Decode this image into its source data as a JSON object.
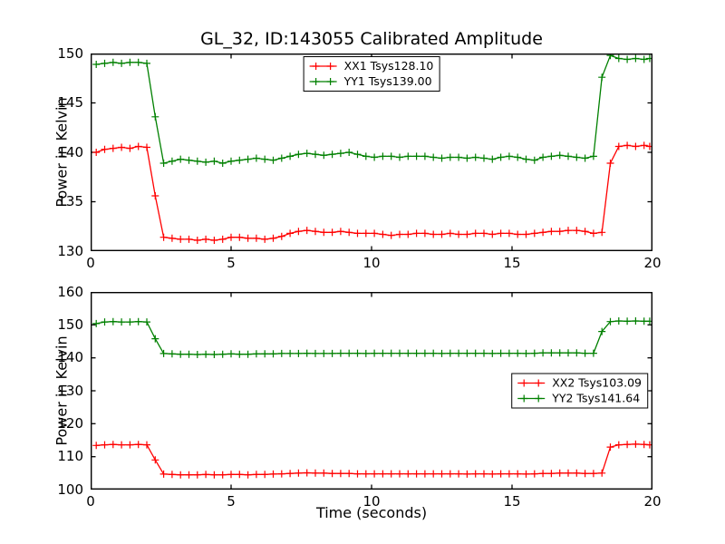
{
  "figure": {
    "title": "GL_32, ID:143055 Calibrated Amplitude",
    "background_color": "#ffffff",
    "frame_color": "#000000"
  },
  "chart_data": [
    {
      "type": "line",
      "subplot": "top",
      "ylabel": "Power in Kelvin",
      "xlabel": "",
      "xlim": [
        0,
        20
      ],
      "ylim": [
        130,
        150
      ],
      "xticks": [
        0,
        5,
        10,
        15,
        20
      ],
      "yticks": [
        130,
        135,
        140,
        145,
        150
      ],
      "grid": false,
      "legend_position": "upper center",
      "x": [
        0.2,
        0.5,
        0.8,
        1.1,
        1.4,
        1.7,
        2.0,
        2.3,
        2.6,
        2.9,
        3.2,
        3.5,
        3.8,
        4.1,
        4.4,
        4.7,
        5.0,
        5.3,
        5.6,
        5.9,
        6.2,
        6.5,
        6.8,
        7.1,
        7.4,
        7.7,
        8.0,
        8.3,
        8.6,
        8.9,
        9.2,
        9.5,
        9.8,
        10.1,
        10.4,
        10.7,
        11.0,
        11.3,
        11.6,
        11.9,
        12.2,
        12.5,
        12.8,
        13.1,
        13.4,
        13.7,
        14.0,
        14.3,
        14.6,
        14.9,
        15.2,
        15.5,
        15.8,
        16.1,
        16.4,
        16.7,
        17.0,
        17.3,
        17.6,
        17.9,
        18.2,
        18.5,
        18.8,
        19.1,
        19.4,
        19.7,
        19.9
      ],
      "series": [
        {
          "name": "XX1 Tsys128.10",
          "tsys": 128.1,
          "color": "#ff0000",
          "marker": "+",
          "values": [
            140.0,
            140.3,
            140.4,
            140.5,
            140.4,
            140.6,
            140.5,
            135.6,
            131.4,
            131.3,
            131.2,
            131.2,
            131.1,
            131.2,
            131.1,
            131.2,
            131.4,
            131.4,
            131.3,
            131.3,
            131.2,
            131.3,
            131.5,
            131.8,
            132.0,
            132.1,
            132.0,
            131.9,
            131.9,
            132.0,
            131.9,
            131.8,
            131.8,
            131.8,
            131.7,
            131.6,
            131.7,
            131.7,
            131.8,
            131.8,
            131.7,
            131.7,
            131.8,
            131.7,
            131.7,
            131.8,
            131.8,
            131.7,
            131.8,
            131.8,
            131.7,
            131.7,
            131.8,
            131.9,
            132.0,
            132.0,
            132.1,
            132.1,
            132.0,
            131.8,
            131.9,
            138.9,
            140.6,
            140.7,
            140.6,
            140.7,
            140.6
          ]
        },
        {
          "name": "YY1 Tsys139.00",
          "tsys": 139.0,
          "color": "#008000",
          "marker": "+",
          "values": [
            148.9,
            149.0,
            149.1,
            149.0,
            149.1,
            149.1,
            149.0,
            143.6,
            138.9,
            139.1,
            139.3,
            139.2,
            139.1,
            139.0,
            139.1,
            138.9,
            139.1,
            139.2,
            139.3,
            139.4,
            139.3,
            139.2,
            139.4,
            139.6,
            139.8,
            139.9,
            139.8,
            139.7,
            139.8,
            139.9,
            140.0,
            139.8,
            139.6,
            139.5,
            139.6,
            139.6,
            139.5,
            139.6,
            139.6,
            139.6,
            139.5,
            139.4,
            139.5,
            139.5,
            139.4,
            139.5,
            139.4,
            139.3,
            139.5,
            139.6,
            139.5,
            139.3,
            139.2,
            139.5,
            139.6,
            139.7,
            139.6,
            139.5,
            139.4,
            139.6,
            147.6,
            149.8,
            149.5,
            149.4,
            149.5,
            149.4,
            149.5
          ]
        }
      ]
    },
    {
      "type": "line",
      "subplot": "bottom",
      "ylabel": "Power in Kelvin",
      "xlabel": "Time (seconds)",
      "xlim": [
        0,
        20
      ],
      "ylim": [
        100,
        160
      ],
      "xticks": [
        0,
        5,
        10,
        15,
        20
      ],
      "yticks": [
        100,
        110,
        120,
        130,
        140,
        150,
        160
      ],
      "grid": false,
      "legend_position": "center right",
      "x": [
        0.2,
        0.5,
        0.8,
        1.1,
        1.4,
        1.7,
        2.0,
        2.3,
        2.6,
        2.9,
        3.2,
        3.5,
        3.8,
        4.1,
        4.4,
        4.7,
        5.0,
        5.3,
        5.6,
        5.9,
        6.2,
        6.5,
        6.8,
        7.1,
        7.4,
        7.7,
        8.0,
        8.3,
        8.6,
        8.9,
        9.2,
        9.5,
        9.8,
        10.1,
        10.4,
        10.7,
        11.0,
        11.3,
        11.6,
        11.9,
        12.2,
        12.5,
        12.8,
        13.1,
        13.4,
        13.7,
        14.0,
        14.3,
        14.6,
        14.9,
        15.2,
        15.5,
        15.8,
        16.1,
        16.4,
        16.7,
        17.0,
        17.3,
        17.6,
        17.9,
        18.2,
        18.5,
        18.8,
        19.1,
        19.4,
        19.7,
        19.9
      ],
      "series": [
        {
          "name": "XX2 Tsys103.09",
          "tsys": 103.09,
          "color": "#ff0000",
          "marker": "+",
          "values": [
            113.4,
            113.6,
            113.7,
            113.6,
            113.6,
            113.7,
            113.6,
            109.0,
            104.7,
            104.6,
            104.5,
            104.5,
            104.5,
            104.6,
            104.5,
            104.5,
            104.6,
            104.6,
            104.5,
            104.6,
            104.6,
            104.7,
            104.8,
            104.9,
            105.0,
            105.1,
            105.0,
            105.0,
            104.9,
            104.9,
            104.9,
            104.8,
            104.8,
            104.8,
            104.8,
            104.8,
            104.8,
            104.8,
            104.8,
            104.8,
            104.8,
            104.8,
            104.8,
            104.8,
            104.7,
            104.8,
            104.8,
            104.7,
            104.8,
            104.8,
            104.8,
            104.7,
            104.8,
            104.9,
            104.9,
            105.0,
            105.0,
            105.0,
            104.9,
            104.9,
            105.0,
            112.9,
            113.6,
            113.7,
            113.8,
            113.7,
            113.6
          ]
        },
        {
          "name": "YY2 Tsys141.64",
          "tsys": 141.64,
          "color": "#008000",
          "marker": "+",
          "values": [
            150.4,
            150.9,
            151.0,
            150.9,
            150.9,
            151.0,
            150.9,
            145.8,
            141.3,
            141.2,
            141.1,
            141.1,
            141.0,
            141.1,
            141.0,
            141.1,
            141.2,
            141.1,
            141.1,
            141.2,
            141.2,
            141.2,
            141.3,
            141.3,
            141.3,
            141.4,
            141.3,
            141.3,
            141.3,
            141.4,
            141.4,
            141.4,
            141.3,
            141.4,
            141.4,
            141.4,
            141.4,
            141.4,
            141.4,
            141.4,
            141.4,
            141.3,
            141.4,
            141.4,
            141.4,
            141.4,
            141.4,
            141.3,
            141.4,
            141.4,
            141.4,
            141.3,
            141.4,
            141.5,
            141.5,
            141.5,
            141.5,
            141.5,
            141.4,
            141.4,
            148.0,
            151.0,
            151.2,
            151.1,
            151.2,
            151.1,
            151.1
          ]
        }
      ]
    }
  ]
}
